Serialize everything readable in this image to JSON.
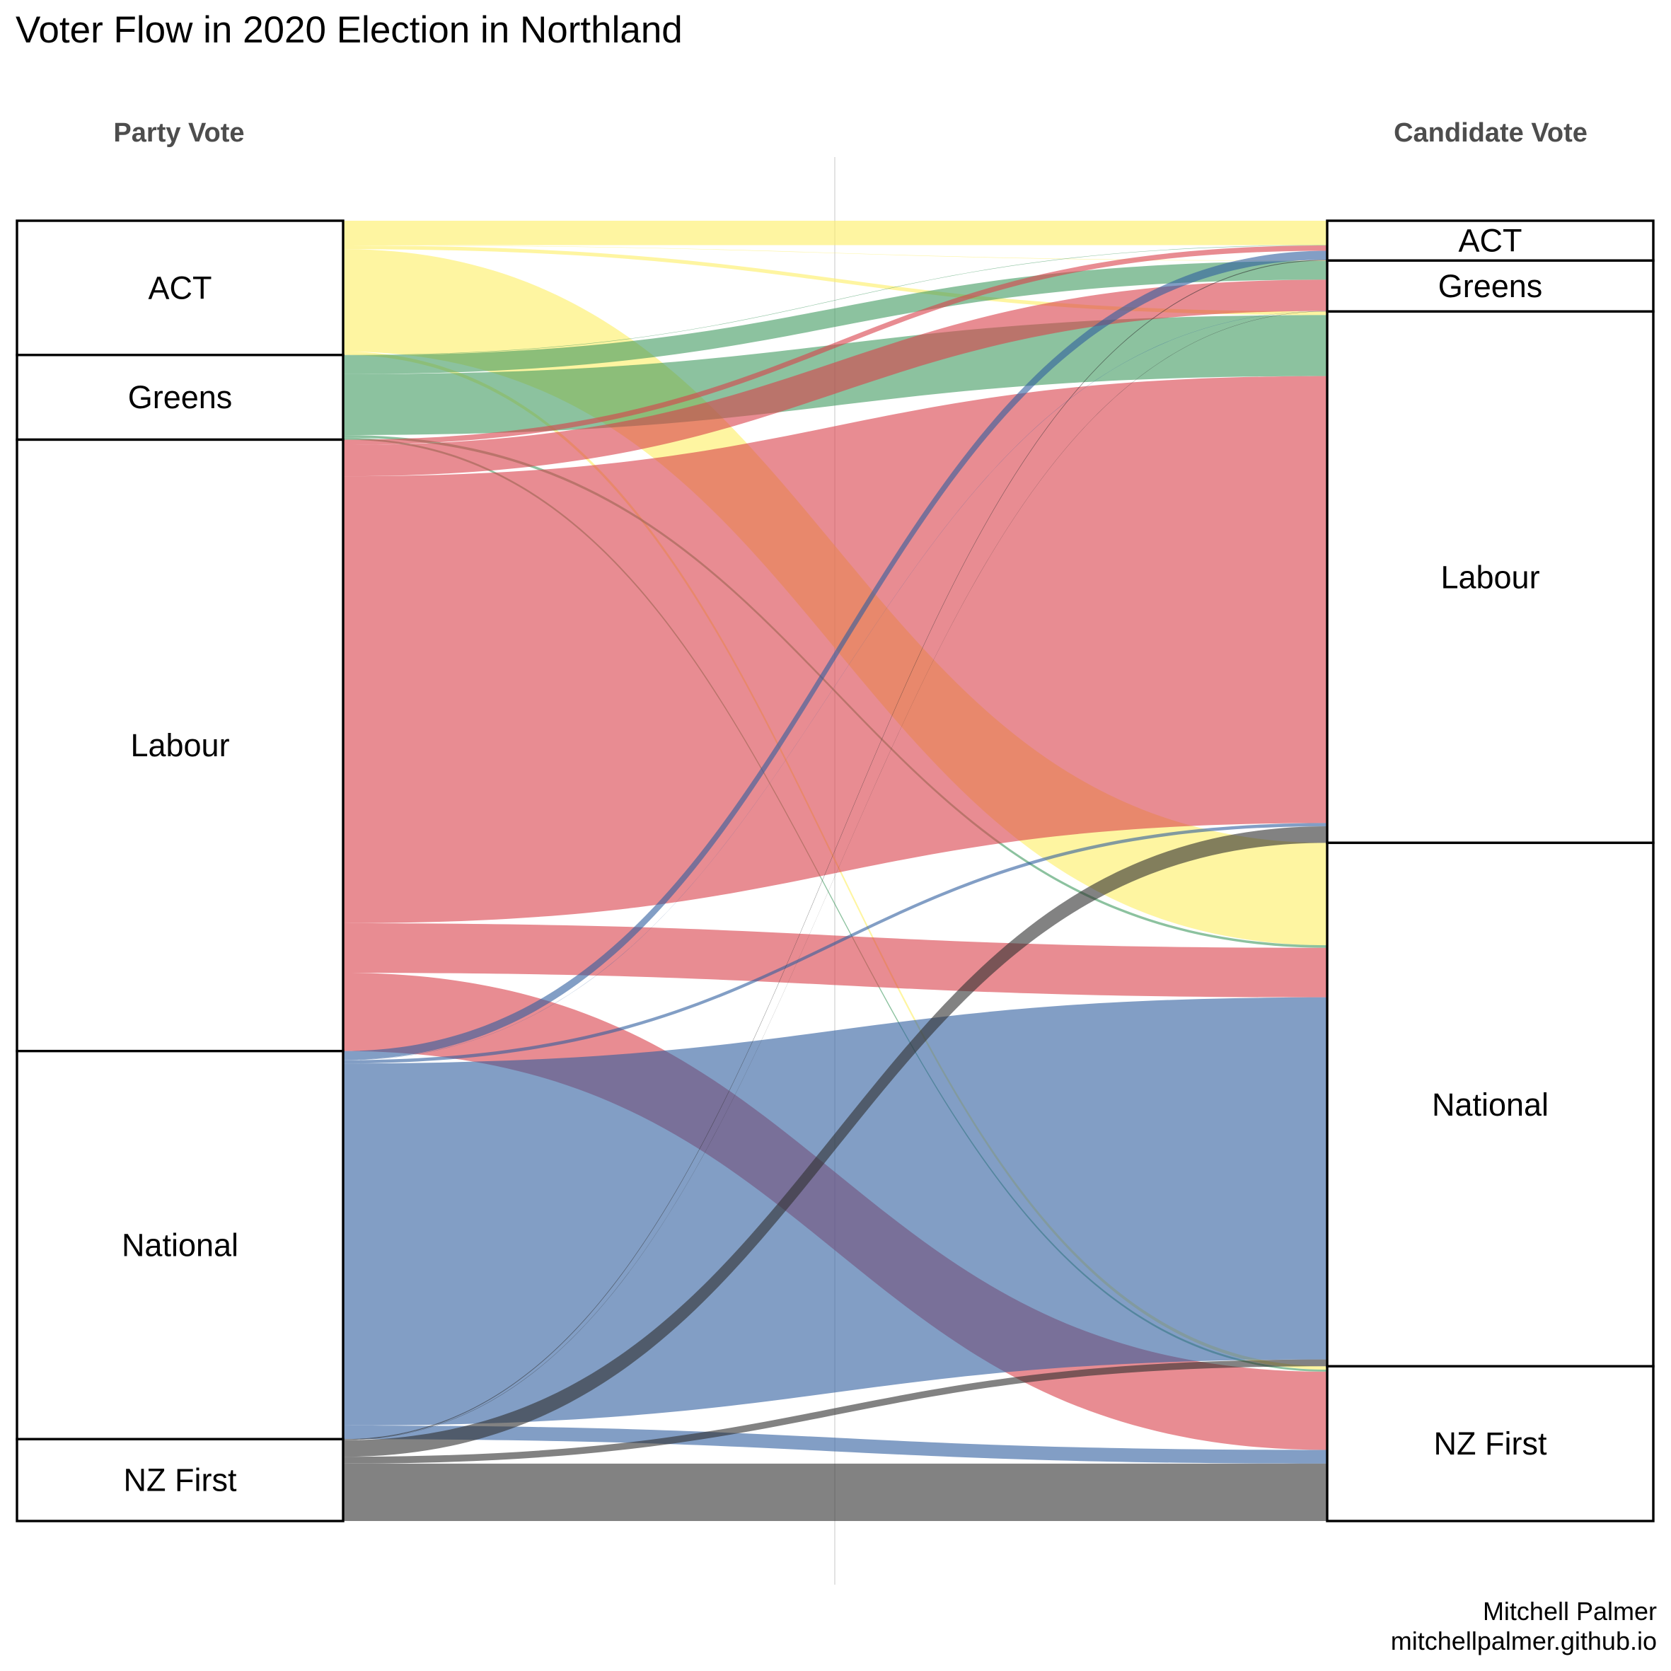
{
  "chart_data": {
    "type": "alluvial",
    "title": "Voter Flow in 2020 Election in Northland",
    "axes": [
      {
        "key": "party",
        "label": "Party Vote"
      },
      {
        "key": "candidate",
        "label": "Candidate Vote"
      }
    ],
    "categories": [
      "ACT",
      "Greens",
      "Labour",
      "National",
      "NZ First"
    ],
    "colors": {
      "ACT": "#fdef63",
      "Greens": "#3f9a5f",
      "Labour": "#d84049",
      "National": "#2f5e9f",
      "NZ First": "#2e2e2e"
    },
    "stratum_totals": {
      "party": {
        "ACT": 3304,
        "Greens": 2084,
        "Labour": 15046,
        "National": 9551,
        "NZ First": 2015
      },
      "candidate": {
        "ACT": 980,
        "Greens": 1253,
        "Labour": 13077,
        "National": 12881,
        "NZ First": 3809
      }
    },
    "flows": [
      {
        "from": "ACT",
        "to": "ACT",
        "value": 600
      },
      {
        "from": "ACT",
        "to": "Greens",
        "value": 10
      },
      {
        "from": "ACT",
        "to": "Labour",
        "value": 90
      },
      {
        "from": "ACT",
        "to": "National",
        "value": 2520
      },
      {
        "from": "ACT",
        "to": "NZ First",
        "value": 84
      },
      {
        "from": "Greens",
        "to": "ACT",
        "value": 10
      },
      {
        "from": "Greens",
        "to": "Greens",
        "value": 461
      },
      {
        "from": "Greens",
        "to": "Labour",
        "value": 1500
      },
      {
        "from": "Greens",
        "to": "National",
        "value": 63
      },
      {
        "from": "Greens",
        "to": "NZ First",
        "value": 50
      },
      {
        "from": "Labour",
        "to": "ACT",
        "value": 130
      },
      {
        "from": "Labour",
        "to": "Greens",
        "value": 770
      },
      {
        "from": "Labour",
        "to": "Labour",
        "value": 11000
      },
      {
        "from": "Labour",
        "to": "National",
        "value": 1220
      },
      {
        "from": "Labour",
        "to": "NZ First",
        "value": 1926
      },
      {
        "from": "National",
        "to": "ACT",
        "value": 220
      },
      {
        "from": "National",
        "to": "Greens",
        "value": 5
      },
      {
        "from": "National",
        "to": "Labour",
        "value": 80
      },
      {
        "from": "National",
        "to": "National",
        "value": 8910
      },
      {
        "from": "National",
        "to": "NZ First",
        "value": 336
      },
      {
        "from": "NZ First",
        "to": "ACT",
        "value": 20
      },
      {
        "from": "NZ First",
        "to": "Greens",
        "value": 7
      },
      {
        "from": "NZ First",
        "to": "Labour",
        "value": 407
      },
      {
        "from": "NZ First",
        "to": "National",
        "value": 168
      },
      {
        "from": "NZ First",
        "to": "NZ First",
        "value": 1413
      }
    ],
    "flow_color_by": "party",
    "caption": [
      "Mitchell Palmer",
      "mitchellpalmer.github.io"
    ]
  }
}
